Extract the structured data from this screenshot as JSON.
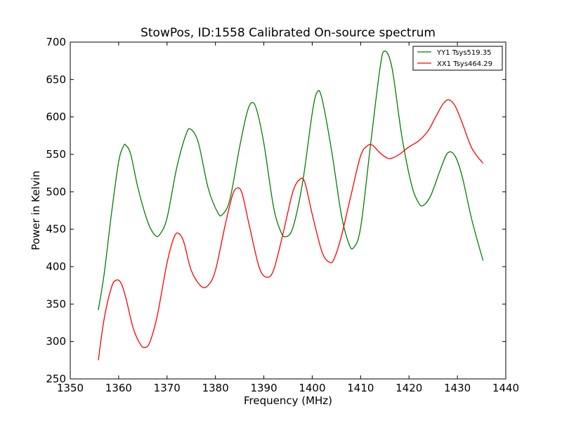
{
  "chart_data": {
    "type": "line",
    "title": "StowPos, ID:1558 Calibrated On-source spectrum",
    "xlabel": "Frequency (MHz)",
    "ylabel": "Power in Kelvin",
    "xlim": [
      1350,
      1440
    ],
    "ylim": [
      250,
      700
    ],
    "xticks": [
      1350,
      1360,
      1370,
      1380,
      1390,
      1400,
      1410,
      1420,
      1430,
      1440
    ],
    "yticks": [
      250,
      300,
      350,
      400,
      450,
      500,
      550,
      600,
      650,
      700
    ],
    "grid": false,
    "legend_position": "top-right",
    "series": [
      {
        "name": "YY1 Tsys519.35",
        "color": "#008000",
        "x": [
          1355.8,
          1357,
          1358.5,
          1360,
          1361,
          1361.5,
          1362.5,
          1364,
          1366,
          1367.5,
          1368.5,
          1370,
          1372,
          1374,
          1375,
          1376.5,
          1378.5,
          1380.5,
          1381.5,
          1383,
          1385,
          1386.5,
          1387.5,
          1388.5,
          1390,
          1392,
          1393.5,
          1394.5,
          1396,
          1398,
          1400,
          1401,
          1402,
          1404,
          1406,
          1407.5,
          1408.5,
          1410,
          1412,
          1414,
          1415,
          1416.5,
          1418.5,
          1420.5,
          1422,
          1423,
          1424.5,
          1426.5,
          1428,
          1429.5,
          1431,
          1433,
          1435.3
        ],
        "values": [
          342,
          390,
          470,
          540,
          561,
          562,
          550,
          505,
          460,
          442,
          443,
          465,
          532,
          578,
          583,
          565,
          505,
          472,
          470,
          490,
          560,
          605,
          619,
          610,
          565,
          480,
          447,
          440,
          452,
          512,
          605,
          633,
          625,
          555,
          470,
          432,
          425,
          452,
          560,
          665,
          688,
          665,
          575,
          510,
          485,
          482,
          495,
          530,
          552,
          548,
          520,
          462,
          408
        ]
      },
      {
        "name": "XX1 Tsys464.29",
        "color": "#ff0000",
        "x": [
          1355.8,
          1357,
          1358.5,
          1359.5,
          1360.5,
          1361.5,
          1363,
          1364.5,
          1365.5,
          1366.5,
          1368,
          1370,
          1371.5,
          1372.5,
          1373.5,
          1375,
          1377,
          1378.5,
          1380,
          1382,
          1383.5,
          1384.5,
          1385.5,
          1387,
          1389,
          1390.5,
          1392,
          1394,
          1396,
          1397.5,
          1398.5,
          1400,
          1402,
          1403.5,
          1404.5,
          1406,
          1408,
          1410,
          1411.5,
          1412.5,
          1414,
          1415.5,
          1416.5,
          1418,
          1420,
          1422,
          1424,
          1425.5,
          1427,
          1428.2,
          1429.5,
          1431,
          1433,
          1435.3
        ],
        "values": [
          275,
          330,
          372,
          382,
          378,
          358,
          318,
          296,
          292,
          300,
          335,
          405,
          440,
          444,
          432,
          395,
          374,
          375,
          395,
          455,
          495,
          505,
          498,
          455,
          400,
          386,
          395,
          445,
          500,
          517,
          512,
          470,
          420,
          406,
          410,
          440,
          495,
          548,
          562,
          562,
          552,
          545,
          545,
          550,
          560,
          568,
          582,
          600,
          617,
          623,
          615,
          592,
          558,
          538
        ]
      }
    ]
  }
}
